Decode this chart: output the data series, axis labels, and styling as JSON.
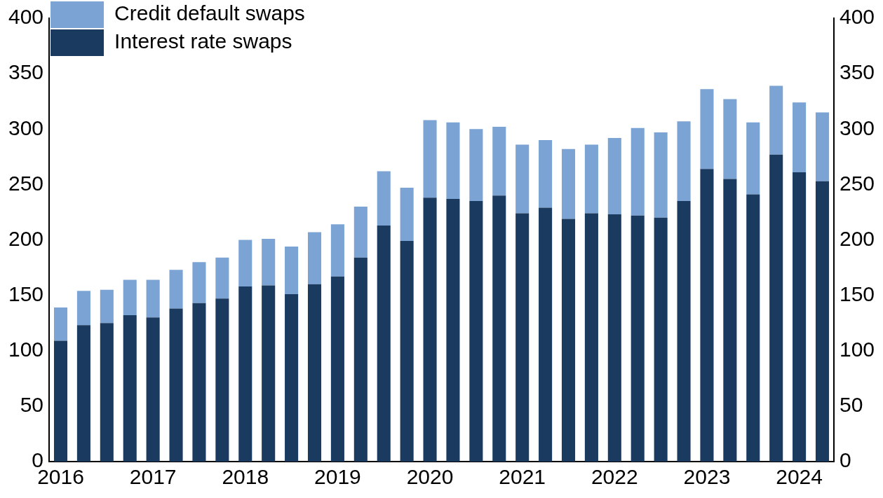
{
  "chart_data": {
    "type": "bar",
    "stacked": true,
    "categories": [
      "2016",
      null,
      null,
      null,
      "2017",
      null,
      null,
      null,
      "2018",
      null,
      null,
      null,
      "2019",
      null,
      null,
      null,
      "2020",
      null,
      null,
      null,
      "2021",
      null,
      null,
      null,
      "2022",
      null,
      null,
      null,
      "2023",
      null,
      null,
      null,
      "2024",
      null
    ],
    "series": [
      {
        "name": "Interest rate swaps",
        "color": "#1b3a60",
        "values": [
          109,
          123,
          125,
          132,
          130,
          138,
          143,
          147,
          158,
          159,
          151,
          160,
          167,
          184,
          213,
          199,
          238,
          237,
          235,
          240,
          224,
          229,
          219,
          224,
          223,
          222,
          220,
          235,
          264,
          255,
          241,
          277,
          261,
          253
        ]
      },
      {
        "name": "Credit default swaps",
        "color": "#7ba3d3",
        "values": [
          30,
          31,
          30,
          32,
          34,
          35,
          37,
          37,
          42,
          42,
          43,
          47,
          47,
          46,
          49,
          48,
          70,
          69,
          65,
          62,
          62,
          61,
          63,
          62,
          69,
          79,
          77,
          72,
          72,
          72,
          65,
          62,
          63,
          62
        ]
      }
    ],
    "ylim": [
      0,
      400
    ],
    "yticks": [
      0,
      50,
      100,
      150,
      200,
      250,
      300,
      350,
      400
    ],
    "y2lim": [
      0,
      400
    ],
    "y2ticks": [
      0,
      50,
      100,
      150,
      200,
      250,
      300,
      350,
      400
    ],
    "legend": "top left",
    "grid": false
  }
}
